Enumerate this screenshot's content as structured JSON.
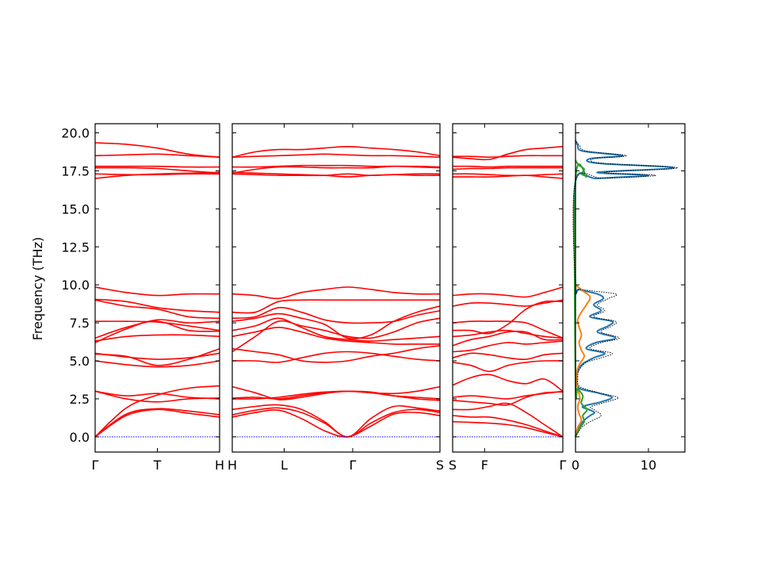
{
  "chart_data": {
    "type": "line",
    "ylabel": "Frequency (THz)",
    "ylim": [
      -1.0,
      20.6
    ],
    "yticks": [
      "0.0",
      "2.5",
      "5.0",
      "7.5",
      "10.0",
      "12.5",
      "15.0",
      "17.5",
      "20.0"
    ],
    "ytick_values": [
      0,
      2.5,
      5,
      7.5,
      10,
      12.5,
      15,
      17.5,
      20
    ],
    "band_color": "#ff0000",
    "zero_line_color": "#0000ff",
    "segments": [
      {
        "labels": [
          {
            "t": 0,
            "text": "Γ"
          },
          {
            "t": 0.5,
            "text": "T"
          },
          {
            "t": 1,
            "text": "H"
          }
        ],
        "bands": [
          [
            0,
            1.4,
            1.8,
            1.55,
            1.3
          ],
          [
            0,
            1.5,
            1.85,
            1.7,
            1.45
          ],
          [
            0,
            1.9,
            2.75,
            3.2,
            3.35
          ],
          [
            3.0,
            2.5,
            2.3,
            2.5,
            2.55
          ],
          [
            3.0,
            2.7,
            2.85,
            2.6,
            2.5
          ],
          [
            5.0,
            4.75,
            4.6,
            4.7,
            5.0
          ],
          [
            5.45,
            5.3,
            4.7,
            5.1,
            5.8
          ],
          [
            5.5,
            5.25,
            5.1,
            5.2,
            5.5
          ],
          [
            6.3,
            6.6,
            6.7,
            6.7,
            6.6
          ],
          [
            6.5,
            7.2,
            7.6,
            7.0,
            6.95
          ],
          [
            6.2,
            7.1,
            7.7,
            7.5,
            7.6
          ],
          [
            7.6,
            7.6,
            7.55,
            7.3,
            7.0
          ],
          [
            9.0,
            8.6,
            8.4,
            7.9,
            7.8
          ],
          [
            9.05,
            8.9,
            8.5,
            8.3,
            8.2
          ],
          [
            9.85,
            9.5,
            9.3,
            9.4,
            9.4
          ],
          [
            17.0,
            17.2,
            17.3,
            17.35,
            17.4
          ],
          [
            17.3,
            17.25,
            17.25,
            17.3,
            17.3
          ],
          [
            17.7,
            17.7,
            17.65,
            17.5,
            17.35
          ],
          [
            17.8,
            17.8,
            17.8,
            17.75,
            17.75
          ],
          [
            18.5,
            18.55,
            18.6,
            18.5,
            18.4
          ],
          [
            19.35,
            19.25,
            19.0,
            18.6,
            18.4
          ]
        ]
      },
      {
        "labels": [
          {
            "t": 0,
            "text": "H"
          },
          {
            "t": 0.25,
            "text": "L"
          },
          {
            "t": 0.58,
            "text": "Γ"
          },
          {
            "t": 1,
            "text": "S"
          }
        ],
        "bands": [
          [
            1.3,
            1.6,
            1.75,
            1.2,
            0.4,
            0.0,
            0.7,
            1.5,
            1.6,
            1.4
          ],
          [
            1.45,
            1.75,
            1.9,
            1.6,
            0.9,
            0.0,
            0.9,
            1.6,
            1.8,
            1.6
          ],
          [
            1.8,
            2.0,
            2.1,
            1.8,
            1.0,
            0.0,
            1.2,
            2.0,
            1.9,
            1.7
          ],
          [
            2.5,
            2.5,
            2.6,
            2.8,
            2.95,
            3.0,
            2.95,
            2.7,
            2.5,
            2.4
          ],
          [
            2.55,
            2.6,
            2.5,
            2.7,
            2.9,
            3.0,
            2.9,
            2.7,
            2.6,
            2.5
          ],
          [
            3.3,
            2.9,
            2.45,
            2.6,
            2.85,
            3.0,
            2.9,
            2.85,
            3.0,
            3.3
          ],
          [
            5.0,
            5.0,
            4.9,
            5.2,
            5.5,
            5.6,
            5.5,
            5.3,
            5.1,
            5.0
          ],
          [
            5.8,
            5.6,
            5.4,
            5.0,
            4.9,
            5.0,
            5.3,
            5.5,
            5.8,
            6.0
          ],
          [
            6.6,
            6.9,
            7.2,
            6.9,
            6.5,
            6.3,
            6.2,
            6.1,
            6.1,
            6.1
          ],
          [
            7.0,
            7.3,
            7.8,
            7.2,
            6.6,
            6.4,
            6.3,
            6.4,
            6.5,
            6.6
          ],
          [
            5.6,
            6.6,
            7.6,
            7.3,
            7.0,
            6.6,
            6.5,
            6.9,
            7.5,
            7.8
          ],
          [
            7.6,
            7.8,
            8.1,
            7.8,
            7.4,
            6.5,
            6.7,
            7.6,
            8.2,
            8.6
          ],
          [
            7.8,
            7.9,
            8.5,
            8.2,
            7.7,
            7.5,
            7.5,
            7.6,
            8.0,
            8.3
          ],
          [
            8.2,
            8.2,
            8.9,
            9.0,
            9.0,
            9.0,
            9.0,
            9.0,
            9.0,
            9.0
          ],
          [
            9.4,
            9.3,
            9.1,
            9.5,
            9.7,
            9.85,
            9.7,
            9.5,
            9.4,
            9.4
          ],
          [
            17.4,
            17.35,
            17.3,
            17.25,
            17.2,
            17.1,
            17.2,
            17.25,
            17.3,
            17.3
          ],
          [
            17.3,
            17.25,
            17.2,
            17.2,
            17.2,
            17.3,
            17.2,
            17.25,
            17.2,
            17.2
          ],
          [
            17.35,
            17.6,
            17.75,
            17.75,
            17.7,
            17.7,
            17.7,
            17.8,
            17.75,
            17.7
          ],
          [
            17.75,
            17.75,
            17.8,
            17.85,
            17.85,
            17.85,
            17.8,
            17.8,
            17.8,
            17.75
          ],
          [
            18.4,
            18.45,
            18.5,
            18.55,
            18.6,
            18.55,
            18.5,
            18.5,
            18.45,
            18.4
          ],
          [
            18.4,
            18.75,
            18.9,
            18.9,
            19.0,
            19.1,
            19.0,
            18.9,
            18.75,
            18.5
          ]
        ]
      },
      {
        "labels": [
          {
            "t": 0,
            "text": "S"
          },
          {
            "t": 0.29,
            "text": "F"
          },
          {
            "t": 1,
            "text": "Γ"
          }
        ],
        "bands": [
          [
            1.0,
            0.95,
            0.9,
            0.8,
            0.6,
            0.3,
            0.0
          ],
          [
            1.4,
            1.3,
            1.3,
            1.1,
            0.8,
            0.4,
            0.0
          ],
          [
            1.8,
            1.8,
            2.0,
            2.2,
            1.6,
            0.8,
            0.0
          ],
          [
            2.4,
            2.3,
            2.2,
            2.1,
            2.6,
            2.9,
            2.95
          ],
          [
            2.6,
            2.7,
            2.6,
            2.5,
            2.7,
            2.85,
            3.0
          ],
          [
            3.4,
            3.9,
            4.1,
            3.7,
            3.5,
            3.8,
            3.0
          ],
          [
            4.9,
            4.7,
            4.3,
            4.7,
            4.9,
            5.0,
            5.0
          ],
          [
            5.2,
            5.5,
            5.4,
            5.2,
            5.1,
            5.4,
            5.5
          ],
          [
            5.6,
            5.7,
            6.0,
            6.2,
            6.1,
            6.2,
            6.3
          ],
          [
            6.0,
            6.4,
            6.6,
            6.9,
            6.9,
            6.4,
            6.4
          ],
          [
            6.6,
            6.7,
            6.9,
            7.0,
            6.8,
            6.6,
            6.5
          ],
          [
            7.0,
            7.0,
            6.8,
            7.4,
            8.4,
            8.9,
            8.9
          ],
          [
            7.5,
            7.6,
            7.6,
            7.6,
            7.5,
            7.0,
            6.5
          ],
          [
            8.6,
            8.8,
            8.8,
            8.7,
            8.6,
            8.8,
            9.0
          ],
          [
            9.3,
            9.4,
            9.4,
            9.3,
            9.2,
            9.5,
            9.85
          ],
          [
            17.1,
            17.1,
            17.1,
            17.15,
            17.2,
            17.1,
            17.0
          ],
          [
            17.3,
            17.3,
            17.25,
            17.2,
            17.2,
            17.25,
            17.3
          ],
          [
            17.6,
            17.65,
            17.65,
            17.7,
            17.7,
            17.7,
            17.7
          ],
          [
            17.8,
            17.8,
            17.75,
            17.8,
            17.8,
            17.8,
            17.8
          ],
          [
            18.4,
            18.3,
            18.25,
            18.6,
            18.9,
            19.0,
            19.1
          ],
          [
            18.45,
            18.45,
            18.4,
            18.45,
            18.5,
            18.5,
            18.5
          ]
        ]
      }
    ],
    "dos": {
      "xlim": [
        0,
        15
      ],
      "xticks": [
        "0",
        "10"
      ],
      "xtick_values": [
        0,
        10
      ],
      "total_color": "#000000",
      "series": [
        {
          "color": "#1f77b4",
          "points": [
            [
              0,
              0.0
            ],
            [
              0.4,
              0.6
            ],
            [
              1.2,
              1.1
            ],
            [
              2.0,
              1.4
            ],
            [
              2.6,
              1.6
            ],
            [
              1.8,
              1.8
            ],
            [
              1.0,
              2.0
            ],
            [
              3.5,
              2.3
            ],
            [
              5.0,
              2.6
            ],
            [
              3.0,
              2.9
            ],
            [
              0.5,
              3.2
            ],
            [
              0.2,
              3.8
            ],
            [
              0.3,
              4.3
            ],
            [
              1.0,
              4.8
            ],
            [
              2.5,
              5.2
            ],
            [
              4.0,
              5.5
            ],
            [
              1.5,
              5.8
            ],
            [
              2.8,
              6.2
            ],
            [
              5.5,
              6.5
            ],
            [
              3.0,
              6.9
            ],
            [
              4.5,
              7.3
            ],
            [
              5.0,
              7.6
            ],
            [
              2.0,
              7.9
            ],
            [
              3.5,
              8.3
            ],
            [
              2.5,
              8.7
            ],
            [
              3.8,
              9.1
            ],
            [
              3.0,
              9.4
            ],
            [
              0.5,
              9.7
            ],
            [
              0.0,
              10.0
            ],
            [
              0.0,
              16.8
            ],
            [
              3.0,
              17.0
            ],
            [
              10.0,
              17.2
            ],
            [
              3.0,
              17.4
            ],
            [
              13.5,
              17.7
            ],
            [
              3.0,
              18.0
            ],
            [
              2.0,
              18.3
            ],
            [
              6.5,
              18.5
            ],
            [
              1.0,
              18.8
            ],
            [
              0.3,
              19.2
            ],
            [
              0.0,
              19.5
            ]
          ]
        },
        {
          "color": "#ff7f0e",
          "points": [
            [
              0,
              0.0
            ],
            [
              0.3,
              0.6
            ],
            [
              0.8,
              1.1
            ],
            [
              0.5,
              1.5
            ],
            [
              0.3,
              2.0
            ],
            [
              0.6,
              2.5
            ],
            [
              0.4,
              3.0
            ],
            [
              0.2,
              3.5
            ],
            [
              0.2,
              4.3
            ],
            [
              0.6,
              4.8
            ],
            [
              1.2,
              5.3
            ],
            [
              0.8,
              5.7
            ],
            [
              0.5,
              6.2
            ],
            [
              0.8,
              6.7
            ],
            [
              0.5,
              7.2
            ],
            [
              0.3,
              7.7
            ],
            [
              0.8,
              8.2
            ],
            [
              1.5,
              8.7
            ],
            [
              2.0,
              9.2
            ],
            [
              1.0,
              9.6
            ],
            [
              0.0,
              10.0
            ]
          ]
        },
        {
          "color": "#2ca02c",
          "points": [
            [
              0,
              0.0
            ],
            [
              0.6,
              0.6
            ],
            [
              1.2,
              1.0
            ],
            [
              1.0,
              1.4
            ],
            [
              1.6,
              1.8
            ],
            [
              0.8,
              2.2
            ],
            [
              1.0,
              2.7
            ],
            [
              0.3,
              3.2
            ],
            [
              0.0,
              3.6
            ],
            [
              0.0,
              16.9
            ],
            [
              1.5,
              17.1
            ],
            [
              0.8,
              17.3
            ],
            [
              1.2,
              17.6
            ],
            [
              0.4,
              17.9
            ],
            [
              0.0,
              18.2
            ]
          ]
        },
        {
          "color": "#000000",
          "points": [
            [
              0,
              0.0
            ],
            [
              0.8,
              0.6
            ],
            [
              2.0,
              1.0
            ],
            [
              3.5,
              1.4
            ],
            [
              2.5,
              1.8
            ],
            [
              2.2,
              2.0
            ],
            [
              5.0,
              2.4
            ],
            [
              5.8,
              2.6
            ],
            [
              3.2,
              2.9
            ],
            [
              0.6,
              3.3
            ],
            [
              0.3,
              3.9
            ],
            [
              0.5,
              4.4
            ],
            [
              1.5,
              4.9
            ],
            [
              3.5,
              5.2
            ],
            [
              5.0,
              5.5
            ],
            [
              2.0,
              5.8
            ],
            [
              3.5,
              6.2
            ],
            [
              6.0,
              6.5
            ],
            [
              3.5,
              6.9
            ],
            [
              5.0,
              7.3
            ],
            [
              5.5,
              7.6
            ],
            [
              2.5,
              7.9
            ],
            [
              4.0,
              8.3
            ],
            [
              3.0,
              8.7
            ],
            [
              4.5,
              9.1
            ],
            [
              5.5,
              9.4
            ],
            [
              0.8,
              9.7
            ],
            [
              0.0,
              10.0
            ],
            [
              0.0,
              16.8
            ],
            [
              4.0,
              17.0
            ],
            [
              11.0,
              17.2
            ],
            [
              4.0,
              17.4
            ],
            [
              14.0,
              17.7
            ],
            [
              3.5,
              18.0
            ],
            [
              2.5,
              18.3
            ],
            [
              7.0,
              18.5
            ],
            [
              1.5,
              18.8
            ],
            [
              0.5,
              19.2
            ],
            [
              0.0,
              19.5
            ]
          ]
        }
      ]
    }
  }
}
